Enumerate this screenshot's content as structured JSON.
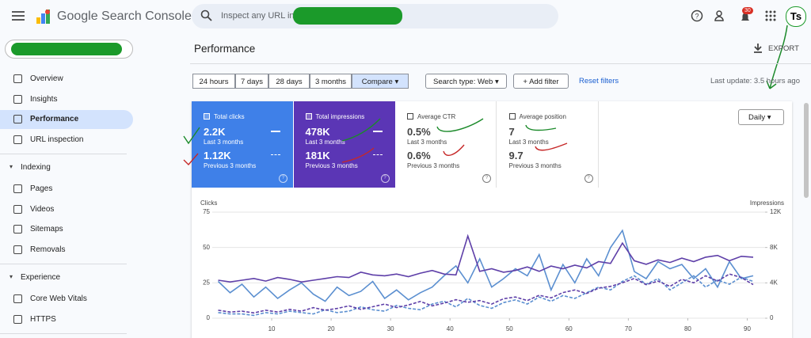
{
  "header": {
    "product": "Google Search Console",
    "search_placeholder": "Inspect any URL in",
    "notification_count": "30",
    "avatar": "Ts"
  },
  "nav": {
    "top": [
      "Overview",
      "Insights",
      "Performance",
      "URL inspection"
    ],
    "sections": [
      {
        "title": "Indexing",
        "items": [
          "Pages",
          "Videos",
          "Sitemaps",
          "Removals"
        ]
      },
      {
        "title": "Experience",
        "items": [
          "Core Web Vitals",
          "HTTPS"
        ]
      }
    ]
  },
  "page": {
    "title": "Performance",
    "export": "EXPORT",
    "filters": [
      "24 hours",
      "7 days",
      "28 days",
      "3 months",
      "Compare"
    ],
    "search_type": "Search type: Web",
    "add_filter": "Add filter",
    "reset": "Reset filters",
    "last_update": "Last update: 3.5 hours ago",
    "granularity": "Daily"
  },
  "metrics": [
    {
      "label": "Total clicks",
      "current": "2.2K",
      "current_period": "Last 3 months",
      "previous": "1.12K",
      "previous_period": "Previous 3 months"
    },
    {
      "label": "Total impressions",
      "current": "478K",
      "current_period": "Last 3 months",
      "previous": "181K",
      "previous_period": "Previous 3 months"
    },
    {
      "label": "Average CTR",
      "current": "0.5%",
      "current_period": "Last 3 months",
      "previous": "0.6%",
      "previous_period": "Previous 3 months"
    },
    {
      "label": "Average position",
      "current": "7",
      "current_period": "Last 3 months",
      "previous": "9.7",
      "previous_period": "Previous 3 months"
    }
  ],
  "chart_data": {
    "type": "line",
    "ylabel": "Clicks",
    "y2label": "Impressions",
    "x": [
      1,
      3,
      5,
      7,
      9,
      11,
      13,
      15,
      17,
      19,
      21,
      23,
      25,
      27,
      29,
      31,
      33,
      35,
      37,
      39,
      41,
      43,
      45,
      47,
      49,
      51,
      53,
      55,
      57,
      59,
      61,
      63,
      65,
      67,
      69,
      71,
      73,
      75,
      77,
      79,
      81,
      83,
      85,
      87,
      89,
      91
    ],
    "xlim": [
      0,
      93
    ],
    "xticks": [
      10,
      20,
      30,
      40,
      50,
      60,
      70,
      80,
      90
    ],
    "ylim": [
      0,
      75
    ],
    "yticks": [
      0,
      25,
      50,
      75
    ],
    "y2lim": [
      0,
      12000
    ],
    "y2ticks": [
      0,
      {
        "value": 4000,
        "label": "4K"
      },
      {
        "value": 8000,
        "label": "8K"
      },
      {
        "value": 12000,
        "label": "12K"
      }
    ],
    "series": [
      {
        "color": "#5b8fd0",
        "dash": false,
        "values": [
          26,
          18,
          24,
          15,
          22,
          14,
          20,
          25,
          17,
          12,
          22,
          16,
          19,
          26,
          14,
          20,
          13,
          18,
          22,
          30,
          37,
          25,
          42,
          22,
          28,
          35,
          30,
          45,
          20,
          38,
          25,
          42,
          30,
          50,
          62,
          33,
          28,
          40,
          35,
          38,
          28,
          35,
          22,
          40,
          28,
          30
        ]
      },
      {
        "color": "#5b8fd0",
        "dash": true,
        "values": [
          4,
          3,
          3,
          2,
          4,
          3,
          5,
          4,
          3,
          6,
          4,
          5,
          8,
          6,
          5,
          9,
          7,
          6,
          10,
          12,
          8,
          14,
          9,
          7,
          11,
          13,
          10,
          15,
          12,
          16,
          14,
          18,
          22,
          20,
          26,
          30,
          24,
          28,
          20,
          25,
          30,
          22,
          27,
          24,
          29,
          26
        ]
      },
      {
        "color": "#5e3fa8",
        "dash": false,
        "axis": "y2",
        "values": [
          4300,
          4100,
          4300,
          4500,
          4200,
          4600,
          4400,
          4100,
          4300,
          4500,
          4700,
          4600,
          5200,
          4900,
          4800,
          5000,
          4700,
          5100,
          5400,
          5000,
          4900,
          9300,
          5300,
          5600,
          5200,
          5400,
          5800,
          5300,
          5900,
          5600,
          6000,
          5700,
          6400,
          6200,
          8500,
          6500,
          6100,
          6600,
          6300,
          6800,
          6400,
          6900,
          7100,
          6500,
          7000,
          6900
        ]
      },
      {
        "color": "#5e3fa8",
        "dash": true,
        "axis": "y2",
        "values": [
          900,
          700,
          800,
          600,
          900,
          700,
          1000,
          800,
          1200,
          900,
          1100,
          1400,
          1000,
          1300,
          1600,
          1200,
          1500,
          1900,
          1400,
          1700,
          2100,
          1800,
          2000,
          1600,
          2200,
          2400,
          2000,
          2600,
          2300,
          2900,
          3200,
          2800,
          3400,
          3600,
          4000,
          4500,
          3800,
          4200,
          3600,
          4400,
          4000,
          4800,
          4200,
          5000,
          4600,
          3800
        ]
      }
    ]
  }
}
